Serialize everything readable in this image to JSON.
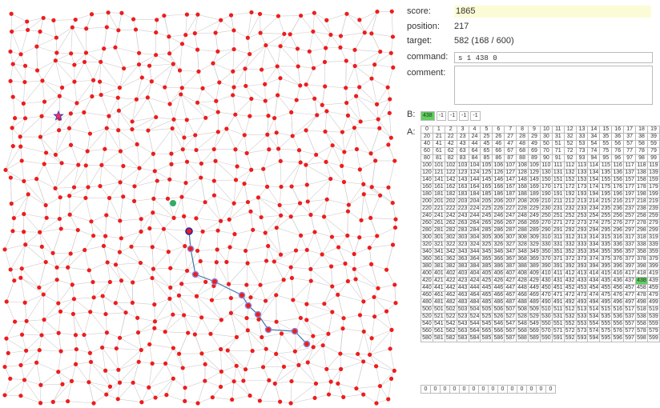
{
  "status": {
    "score_label": "score:",
    "score_value": "1865",
    "position_label": "position:",
    "position_value": "217",
    "target_label": "target:",
    "target_value": "582 (168 / 600)",
    "command_label": "command:",
    "command_value": "s 1 438 0",
    "comment_label": "comment:",
    "comment_value": ""
  },
  "b": {
    "label": "B:",
    "cells": [
      "438",
      "-1",
      "-1",
      "-1",
      "-1"
    ],
    "highlight_index": 0
  },
  "a": {
    "label": "A:",
    "count": 600,
    "columns": 20,
    "highlight_value": 438,
    "extra_cells": [
      "0",
      "0",
      "0",
      "0",
      "0",
      "0",
      "0",
      "0",
      "0",
      "0",
      "0",
      "0",
      "0",
      "0"
    ]
  },
  "colors": {
    "node": "#ee1c1c",
    "edge": "#cccccc",
    "path": "#4477aa",
    "visited_ring": "#8888dd",
    "current_outline": "#2222aa",
    "target_node": "#33aa66",
    "start_star": "#ee3355",
    "highlight": "#5ccf5c"
  }
}
